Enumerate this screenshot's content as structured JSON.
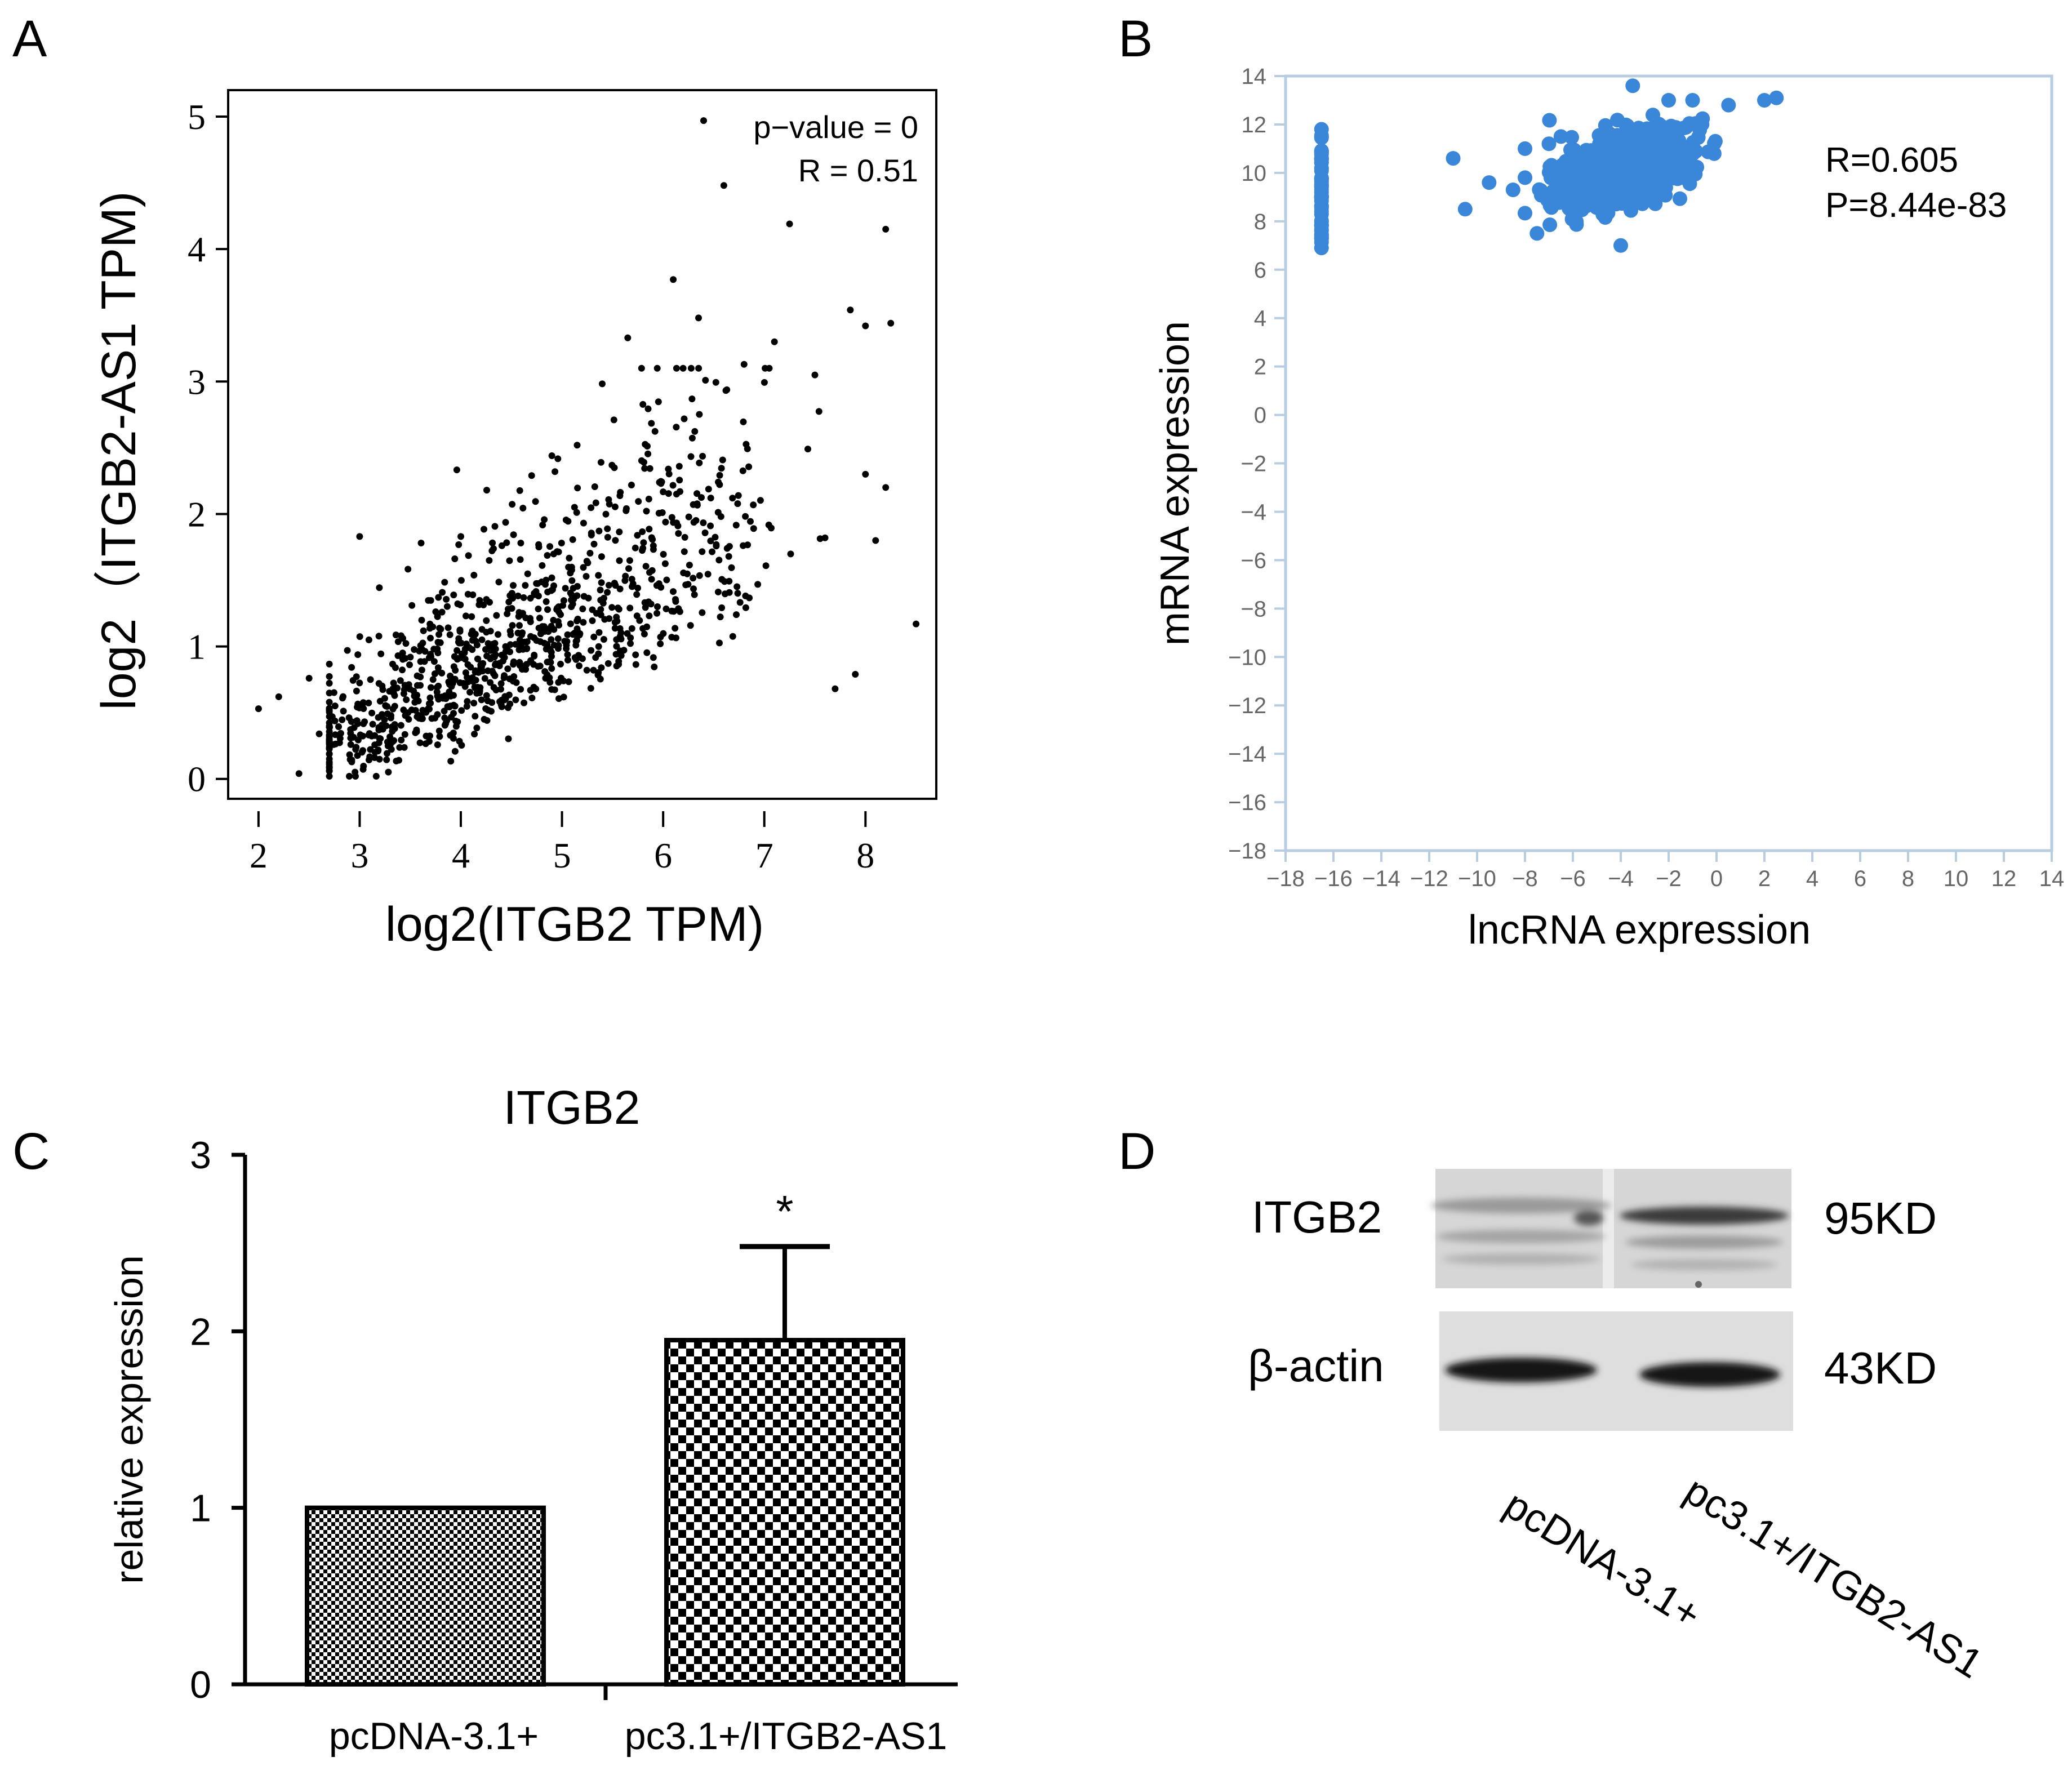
{
  "panel_letters": {
    "a": "A",
    "b": "B",
    "c": "C",
    "d": "D"
  },
  "chart_data": [
    {
      "panel": "A",
      "type": "scatter",
      "title": "",
      "xlabel": "log2(ITGB2 TPM)",
      "ylabel": "log2（ITGB2-AS1 TPM)",
      "xlim": [
        1.7,
        8.7
      ],
      "ylim": [
        -0.15,
        5.2
      ],
      "xticks": [
        "2",
        "3",
        "4",
        "5",
        "6",
        "7",
        "8"
      ],
      "yticks": [
        "0",
        "1",
        "2",
        "3",
        "4",
        "5"
      ],
      "annotations": [
        "p−value = 0",
        "R = 0.51"
      ],
      "point_count": 1000,
      "outlier_points": [
        [
          6.4,
          4.97
        ],
        [
          6.6,
          4.48
        ],
        [
          7.25,
          4.19
        ],
        [
          8.2,
          4.15
        ],
        [
          6.1,
          3.77
        ],
        [
          7.85,
          3.54
        ],
        [
          8.25,
          3.44
        ],
        [
          8.0,
          3.42
        ],
        [
          6.35,
          3.48
        ],
        [
          5.65,
          3.33
        ],
        [
          7.1,
          3.3
        ],
        [
          6.8,
          3.13
        ],
        [
          7.5,
          3.05
        ],
        [
          8.5,
          1.17
        ],
        [
          3.0,
          1.83
        ],
        [
          4.0,
          1.83
        ],
        [
          7.6,
          1.82
        ],
        [
          8.1,
          1.8
        ],
        [
          8.2,
          2.2
        ],
        [
          8.0,
          2.3
        ],
        [
          7.7,
          0.68
        ],
        [
          7.9,
          0.79
        ],
        [
          2.0,
          0.53
        ],
        [
          2.2,
          0.62
        ],
        [
          2.4,
          0.04
        ],
        [
          2.5,
          0.76
        ],
        [
          2.6,
          0.34
        ],
        [
          4.7,
          2.29
        ],
        [
          4.9,
          2.44
        ],
        [
          5.15,
          2.52
        ]
      ],
      "trend": {
        "slope": 0.3,
        "intercept": -0.75
      }
    },
    {
      "panel": "B",
      "type": "scatter",
      "title": "",
      "xlabel": "lncRNA expression",
      "ylabel": "mRNA expression",
      "xlim": [
        -18,
        14
      ],
      "ylim": [
        -18,
        14
      ],
      "xticks": [
        "−18",
        "−16",
        "−14",
        "−12",
        "−10",
        "−8",
        "−6",
        "−4",
        "−2",
        "0",
        "2",
        "4",
        "6",
        "8",
        "10",
        "12",
        "14"
      ],
      "yticks": [
        "−18",
        "−16",
        "−14",
        "−12",
        "−10",
        "−8",
        "−6",
        "−4",
        "−2",
        "0",
        "2",
        "4",
        "6",
        "8",
        "10",
        "12",
        "14"
      ],
      "annotations": [
        "R=0.605",
        "P=8.44e-83"
      ],
      "color": "#3a86d8",
      "axis_color": "#b8cde2",
      "point_count": 950,
      "column_points": {
        "x": -16.5,
        "y_range": [
          6.9,
          11.8
        ]
      },
      "outlier_points": [
        [
          -11,
          10.6
        ],
        [
          -10.5,
          8.5
        ],
        [
          -9.5,
          9.6
        ],
        [
          -8.5,
          9.3
        ],
        [
          -8.0,
          11.0
        ],
        [
          -7.5,
          7.5
        ],
        [
          -7.0,
          11.2
        ],
        [
          -2.0,
          13.0
        ],
        [
          -3.5,
          13.6
        ],
        [
          -1.0,
          13.0
        ],
        [
          0.5,
          12.8
        ],
        [
          2.0,
          13.0
        ],
        [
          2.5,
          13.1
        ],
        [
          -4.0,
          7.0
        ],
        [
          -6.5,
          11.5
        ]
      ],
      "cluster": {
        "x_center": -4,
        "x_spread": 4.5,
        "y_center": 10.1
      }
    },
    {
      "panel": "C",
      "type": "bar",
      "title": "ITGB2",
      "xlabel": "",
      "ylabel": "relative expression",
      "ylim": [
        0,
        3
      ],
      "yticks": [
        "0",
        "1",
        "2",
        "3"
      ],
      "categories": [
        "pcDNA-3.1+",
        "pc3.1+/ITGB2-AS1"
      ],
      "values": [
        1.0,
        1.95
      ],
      "errors": [
        0,
        0.53
      ],
      "significance": [
        "",
        "*"
      ]
    }
  ],
  "blot": {
    "panel": "D",
    "rows": [
      {
        "label": "ITGB2",
        "size": "95KD"
      },
      {
        "label": "β-actin",
        "size": "43KD"
      }
    ],
    "lanes": [
      "pcDNA-3.1+",
      "pc3.1+/ITGB2-AS1"
    ]
  }
}
